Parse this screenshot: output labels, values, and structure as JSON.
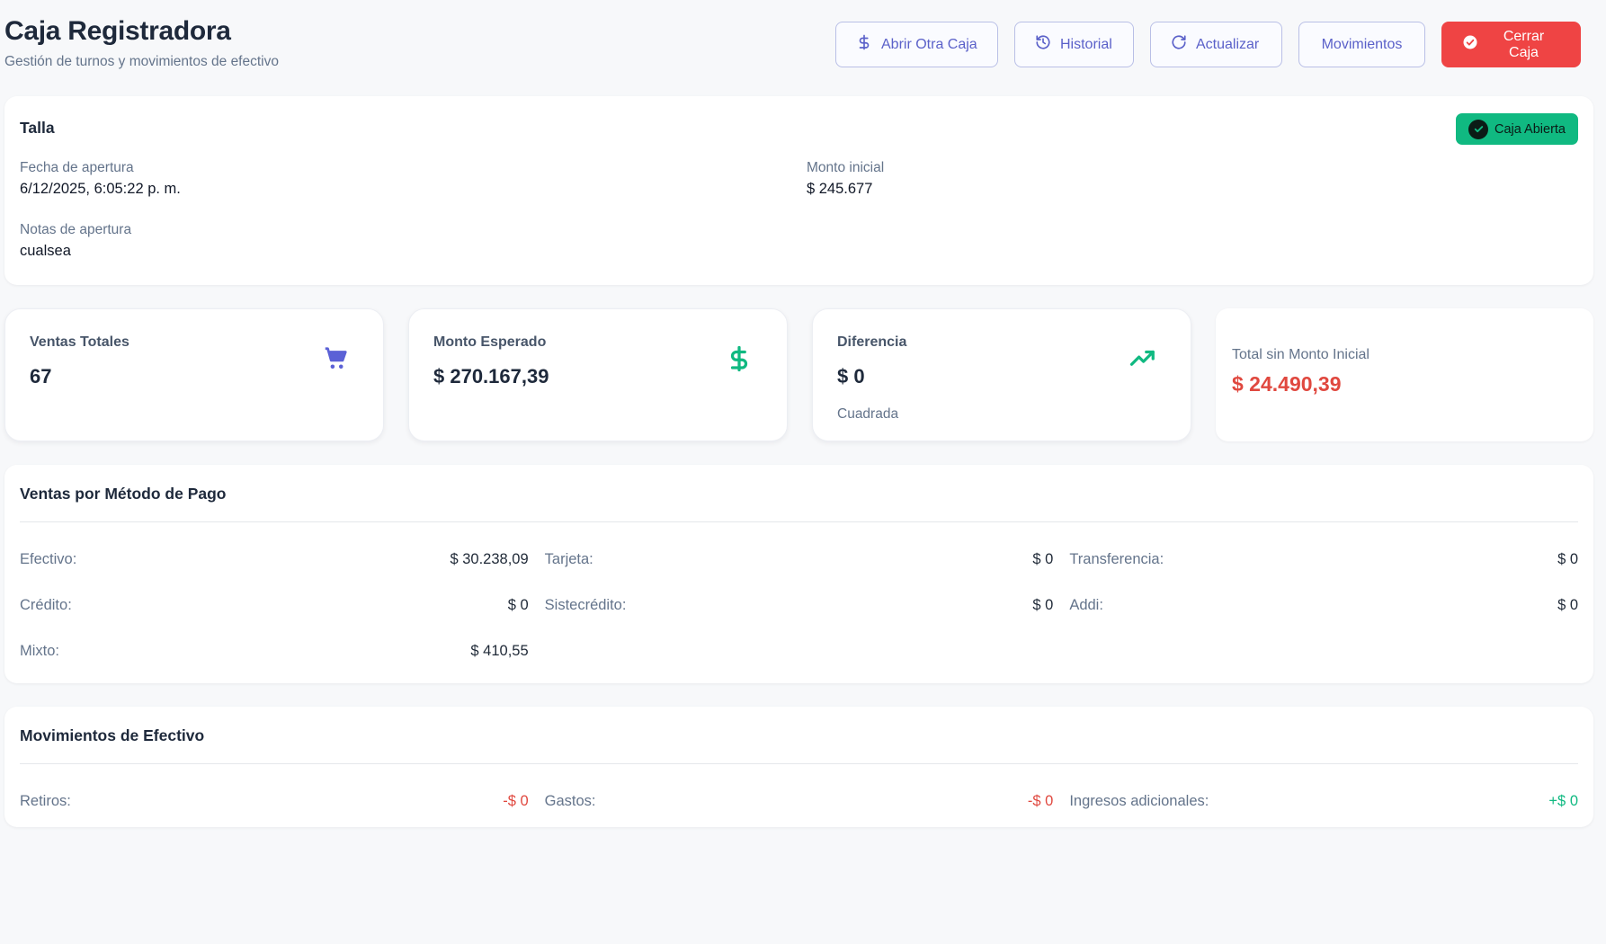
{
  "header": {
    "title": "Caja Registradora",
    "subtitle": "Gestión de turnos y movimientos de efectivo"
  },
  "actions": {
    "abrir": "Abrir Otra Caja",
    "historial": "Historial",
    "actualizar": "Actualizar",
    "movimientos": "Movimientos",
    "cerrar": "Cerrar Caja"
  },
  "shift": {
    "name": "Talla",
    "status": "Caja Abierta",
    "fecha_label": "Fecha de apertura",
    "fecha_value": "6/12/2025, 6:05:22 p. m.",
    "monto_label": "Monto inicial",
    "monto_value": "$ 245.677",
    "notas_label": "Notas de apertura",
    "notas_value": "cualsea"
  },
  "stats": {
    "ventas": {
      "label": "Ventas Totales",
      "value": "67",
      "icon": "cart-icon"
    },
    "esperado": {
      "label": "Monto Esperado",
      "value": "$ 270.167,39",
      "icon": "dollar-icon"
    },
    "diferencia": {
      "label": "Diferencia",
      "value": "$ 0",
      "sub": "Cuadrada",
      "icon": "trending-up-icon"
    },
    "total": {
      "label": "Total sin Monto Inicial",
      "value": "$ 24.490,39"
    }
  },
  "payments": {
    "title": "Ventas por Método de Pago",
    "rows": [
      {
        "label": "Efectivo:",
        "value": "$ 30.238,09"
      },
      {
        "label": "Tarjeta:",
        "value": "$ 0"
      },
      {
        "label": "Transferencia:",
        "value": "$ 0"
      },
      {
        "label": "Crédito:",
        "value": "$ 0"
      },
      {
        "label": "Sistecrédito:",
        "value": "$ 0"
      },
      {
        "label": "Addi:",
        "value": "$ 0"
      },
      {
        "label": "Mixto:",
        "value": "$ 410,55"
      }
    ]
  },
  "movements": {
    "title": "Movimientos de Efectivo",
    "rows": [
      {
        "label": "Retiros:",
        "value": "-$ 0"
      },
      {
        "label": "Gastos:",
        "value": "-$ 0"
      },
      {
        "label": "Ingresos adicionales:",
        "value": "+$ 0"
      }
    ]
  },
  "colors": {
    "primary": "#5b61c9",
    "danger": "#ef4444",
    "success": "#10b981",
    "negative": "#e0483f"
  }
}
